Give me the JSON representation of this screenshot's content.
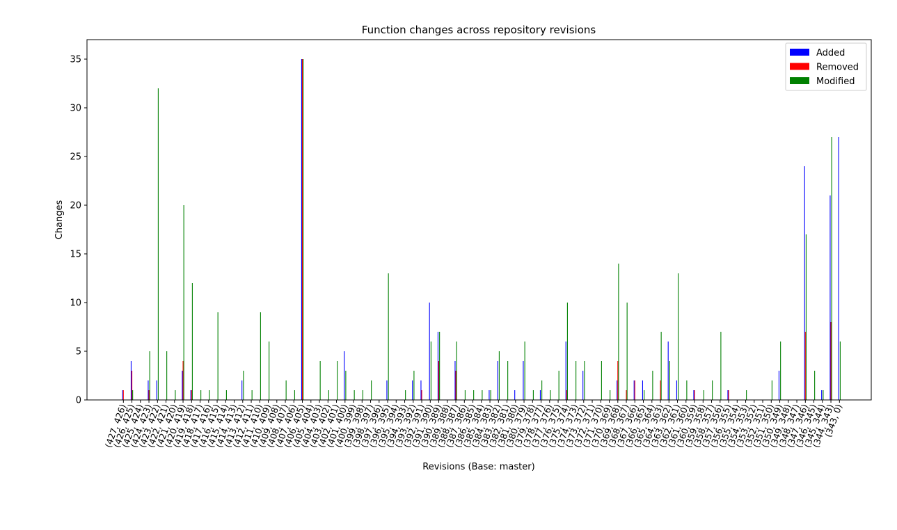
{
  "chart_data": {
    "type": "bar",
    "title": "Function changes across repository revisions",
    "xlabel": "Revisions (Base: master)",
    "ylabel": "Changes",
    "ylim": [
      0,
      37
    ],
    "yticks": [
      0,
      5,
      10,
      15,
      20,
      25,
      30,
      35
    ],
    "grid": false,
    "legend_position": "top-right",
    "categories": [
      "(427, 426)",
      "(426, 425)",
      "(425, 424)",
      "(424, 423)",
      "(423, 422)",
      "(422, 421)",
      "(421, 420)",
      "(420, 419)",
      "(419, 418)",
      "(418, 417)",
      "(417, 416)",
      "(416, 415)",
      "(415, 414)",
      "(414, 413)",
      "(413, 412)",
      "(412, 411)",
      "(411, 410)",
      "(410, 409)",
      "(409, 408)",
      "(408, 407)",
      "(407, 406)",
      "(406, 405)",
      "(405, 404)",
      "(404, 403)",
      "(403, 402)",
      "(402, 401)",
      "(401, 400)",
      "(400, 399)",
      "(399, 398)",
      "(398, 397)",
      "(397, 396)",
      "(396, 395)",
      "(395, 394)",
      "(394, 393)",
      "(393, 392)",
      "(392, 391)",
      "(391, 390)",
      "(390, 389)",
      "(389, 388)",
      "(388, 387)",
      "(387, 386)",
      "(386, 385)",
      "(385, 384)",
      "(384, 383)",
      "(383, 382)",
      "(382, 381)",
      "(381, 380)",
      "(380, 379)",
      "(379, 378)",
      "(378, 377)",
      "(377, 376)",
      "(376, 375)",
      "(375, 374)",
      "(374, 373)",
      "(373, 372)",
      "(372, 371)",
      "(371, 370)",
      "(370, 369)",
      "(369, 368)",
      "(368, 367)",
      "(367, 366)",
      "(366, 365)",
      "(365, 364)",
      "(364, 363)",
      "(363, 362)",
      "(362, 361)",
      "(361, 360)",
      "(360, 359)",
      "(359, 358)",
      "(358, 357)",
      "(357, 356)",
      "(356, 355)",
      "(355, 354)",
      "(354, 353)",
      "(353, 352)",
      "(352, 351)",
      "(351, 350)",
      "(350, 349)",
      "(349, 348)",
      "(348, 347)",
      "(347, 346)",
      "(346, 345)",
      "(345, 344)",
      "(344, 343)",
      "(343, 0)"
    ],
    "series": [
      {
        "name": "Added",
        "color": "#0000ff",
        "values": [
          1,
          4,
          0,
          2,
          2,
          0,
          0,
          3,
          1,
          0,
          0,
          0,
          0,
          0,
          2,
          0,
          0,
          0,
          0,
          0,
          0,
          35,
          0,
          0,
          0,
          0,
          5,
          0,
          0,
          0,
          0,
          2,
          0,
          0,
          2,
          2,
          10,
          7,
          0,
          4,
          0,
          0,
          0,
          1,
          4,
          0,
          1,
          4,
          0,
          1,
          0,
          0,
          6,
          0,
          3,
          0,
          0,
          0,
          2,
          0,
          2,
          2,
          0,
          0,
          6,
          2,
          0,
          1,
          0,
          0,
          0,
          1,
          0,
          0,
          0,
          0,
          0,
          3,
          0,
          0,
          24,
          0,
          1,
          21,
          27
        ]
      },
      {
        "name": "Removed",
        "color": "#ff0000",
        "values": [
          1,
          3,
          0,
          1,
          0,
          0,
          0,
          4,
          1,
          0,
          0,
          0,
          0,
          0,
          0,
          0,
          0,
          0,
          0,
          0,
          0,
          35,
          0,
          0,
          0,
          0,
          0,
          0,
          0,
          0,
          0,
          0,
          0,
          0,
          0,
          1,
          0,
          4,
          0,
          3,
          0,
          0,
          0,
          0,
          0,
          0,
          0,
          0,
          0,
          0,
          0,
          0,
          1,
          0,
          0,
          0,
          0,
          0,
          4,
          1,
          2,
          0,
          0,
          2,
          0,
          0,
          0,
          1,
          0,
          0,
          0,
          1,
          0,
          0,
          0,
          0,
          0,
          0,
          0,
          0,
          7,
          0,
          0,
          8,
          0
        ]
      },
      {
        "name": "Modified",
        "color": "#008000",
        "values": [
          0,
          1,
          0,
          5,
          32,
          5,
          1,
          20,
          12,
          1,
          1,
          9,
          1,
          0,
          3,
          1,
          9,
          6,
          0,
          2,
          1,
          35,
          0,
          4,
          1,
          4,
          3,
          1,
          1,
          2,
          0,
          13,
          0,
          1,
          3,
          0,
          6,
          7,
          0,
          6,
          1,
          1,
          1,
          1,
          5,
          4,
          0,
          6,
          1,
          2,
          1,
          3,
          10,
          4,
          4,
          0,
          4,
          1,
          14,
          10,
          0,
          1,
          3,
          7,
          4,
          13,
          2,
          0,
          1,
          2,
          7,
          0,
          0,
          1,
          0,
          0,
          2,
          6,
          0,
          0,
          17,
          3,
          1,
          27,
          6
        ]
      }
    ]
  }
}
